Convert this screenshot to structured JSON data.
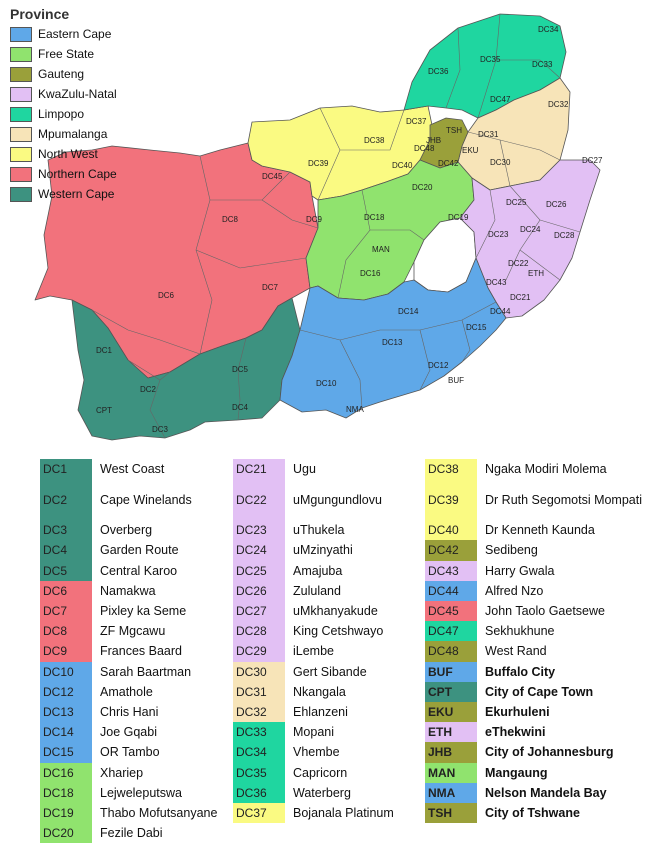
{
  "legend": {
    "title": "Province",
    "items": [
      {
        "label": "Eastern Cape",
        "color": "#5fa8e8"
      },
      {
        "label": "Free State",
        "color": "#90e36e"
      },
      {
        "label": "Gauteng",
        "color": "#9aa03a"
      },
      {
        "label": "KwaZulu-Natal",
        "color": "#e2c0f4"
      },
      {
        "label": "Limpopo",
        "color": "#1fd6a0"
      },
      {
        "label": "Mpumalanga",
        "color": "#f7e4b8"
      },
      {
        "label": "North West",
        "color": "#fafa82"
      },
      {
        "label": "Northern Cape",
        "color": "#f2727c"
      },
      {
        "label": "Western Cape",
        "color": "#3d9280"
      }
    ]
  },
  "map_labels": {
    "DC1": "DC1",
    "DC2": "DC2",
    "DC3": "DC3",
    "DC4": "DC4",
    "DC5": "DC5",
    "DC6": "DC6",
    "DC7": "DC7",
    "DC8": "DC8",
    "DC9": "DC9",
    "DC10": "DC10",
    "DC12": "DC12",
    "DC13": "DC13",
    "DC14": "DC14",
    "DC15": "DC15",
    "DC16": "DC16",
    "DC18": "DC18",
    "DC19": "DC19",
    "DC20": "DC20",
    "DC21": "DC21",
    "DC22": "DC22",
    "DC23": "DC23",
    "DC24": "DC24",
    "DC25": "DC25",
    "DC26": "DC26",
    "DC27": "DC27",
    "DC28": "DC28",
    "DC30": "DC30",
    "DC31": "DC31",
    "DC32": "DC32",
    "DC33": "DC33",
    "DC34": "DC34",
    "DC35": "DC35",
    "DC36": "DC36",
    "DC37": "DC37",
    "DC38": "DC38",
    "DC39": "DC39",
    "DC40": "DC40",
    "DC42": "DC42",
    "DC43": "DC43",
    "DC44": "DC44",
    "DC45": "DC45",
    "DC47": "DC47",
    "DC48": "DC48",
    "TSH": "TSH",
    "EKU": "EKU",
    "JHB": "JHB",
    "MAN": "MAN",
    "BUF": "BUF",
    "NMA": "NMA",
    "ETH": "ETH",
    "CPT": "CPT"
  },
  "table": {
    "col1": [
      {
        "code": "DC1",
        "name": "West Coast",
        "color": "#3d9280"
      },
      {
        "code": "DC2",
        "name": "Cape Winelands",
        "color": "#3d9280"
      },
      {
        "code": "DC3",
        "name": "Overberg",
        "color": "#3d9280"
      },
      {
        "code": "DC4",
        "name": "Garden Route",
        "color": "#3d9280"
      },
      {
        "code": "DC5",
        "name": "Central Karoo",
        "color": "#3d9280"
      },
      {
        "code": "DC6",
        "name": "Namakwa",
        "color": "#f2727c"
      },
      {
        "code": "DC7",
        "name": "Pixley ka Seme",
        "color": "#f2727c"
      },
      {
        "code": "DC8",
        "name": "ZF Mgcawu",
        "color": "#f2727c"
      },
      {
        "code": "DC9",
        "name": "Frances Baard",
        "color": "#f2727c"
      },
      {
        "code": "DC10",
        "name": "Sarah Baartman",
        "color": "#5fa8e8"
      },
      {
        "code": "DC12",
        "name": "Amathole",
        "color": "#5fa8e8"
      },
      {
        "code": "DC13",
        "name": "Chris Hani",
        "color": "#5fa8e8"
      },
      {
        "code": "DC14",
        "name": "Joe Gqabi",
        "color": "#5fa8e8"
      },
      {
        "code": "DC15",
        "name": "OR Tambo",
        "color": "#5fa8e8"
      },
      {
        "code": "DC16",
        "name": "Xhariep",
        "color": "#90e36e"
      },
      {
        "code": "DC18",
        "name": "Lejweleputswa",
        "color": "#90e36e"
      },
      {
        "code": "DC19",
        "name": "Thabo Mofutsanyane",
        "color": "#90e36e"
      },
      {
        "code": "DC20",
        "name": "Fezile Dabi",
        "color": "#90e36e"
      }
    ],
    "col2": [
      {
        "code": "DC21",
        "name": "Ugu",
        "color": "#e2c0f4"
      },
      {
        "code": "DC22",
        "name": "uMgungundlovu",
        "color": "#e2c0f4"
      },
      {
        "code": "DC23",
        "name": "uThukela",
        "color": "#e2c0f4"
      },
      {
        "code": "DC24",
        "name": "uMzinyathi",
        "color": "#e2c0f4"
      },
      {
        "code": "DC25",
        "name": "Amajuba",
        "color": "#e2c0f4"
      },
      {
        "code": "DC26",
        "name": "Zululand",
        "color": "#e2c0f4"
      },
      {
        "code": "DC27",
        "name": "uMkhanyakude",
        "color": "#e2c0f4"
      },
      {
        "code": "DC28",
        "name": "King Cetshwayo",
        "color": "#e2c0f4"
      },
      {
        "code": "DC29",
        "name": "iLembe",
        "color": "#e2c0f4"
      },
      {
        "code": "DC30",
        "name": "Gert Sibande",
        "color": "#f7e4b8"
      },
      {
        "code": "DC31",
        "name": "Nkangala",
        "color": "#f7e4b8"
      },
      {
        "code": "DC32",
        "name": "Ehlanzeni",
        "color": "#f7e4b8"
      },
      {
        "code": "DC33",
        "name": "Mopani",
        "color": "#1fd6a0"
      },
      {
        "code": "DC34",
        "name": "Vhembe",
        "color": "#1fd6a0"
      },
      {
        "code": "DC35",
        "name": "Capricorn",
        "color": "#1fd6a0"
      },
      {
        "code": "DC36",
        "name": "Waterberg",
        "color": "#1fd6a0"
      },
      {
        "code": "DC37",
        "name": "Bojanala Platinum",
        "color": "#fafa82"
      }
    ],
    "col3": [
      {
        "code": "DC38",
        "name": "Ngaka Modiri Molema",
        "color": "#fafa82"
      },
      {
        "code": "DC39",
        "name": "Dr Ruth Segomotsi Mompati",
        "color": "#fafa82"
      },
      {
        "code": "DC40",
        "name": "Dr Kenneth Kaunda",
        "color": "#fafa82"
      },
      {
        "code": "DC42",
        "name": "Sedibeng",
        "color": "#9aa03a"
      },
      {
        "code": "DC43",
        "name": "Harry Gwala",
        "color": "#e2c0f4"
      },
      {
        "code": "DC44",
        "name": "Alfred Nzo",
        "color": "#5fa8e8"
      },
      {
        "code": "DC45",
        "name": "John Taolo Gaetsewe",
        "color": "#f2727c"
      },
      {
        "code": "DC47",
        "name": "Sekhukhune",
        "color": "#1fd6a0"
      },
      {
        "code": "DC48",
        "name": "West Rand",
        "color": "#9aa03a"
      },
      {
        "code": "BUF",
        "name": "Buffalo City",
        "color": "#5fa8e8"
      },
      {
        "code": "CPT",
        "name": "City of Cape Town",
        "color": "#3d9280"
      },
      {
        "code": "EKU",
        "name": "Ekurhuleni",
        "color": "#9aa03a"
      },
      {
        "code": "ETH",
        "name": "eThekwini",
        "color": "#e2c0f4"
      },
      {
        "code": "JHB",
        "name": "City of Johannesburg",
        "color": "#9aa03a"
      },
      {
        "code": "MAN",
        "name": "Mangaung",
        "color": "#90e36e"
      },
      {
        "code": "NMA",
        "name": "Nelson Mandela Bay",
        "color": "#5fa8e8"
      },
      {
        "code": "TSH",
        "name": "City of Tshwane",
        "color": "#9aa03a"
      }
    ]
  }
}
